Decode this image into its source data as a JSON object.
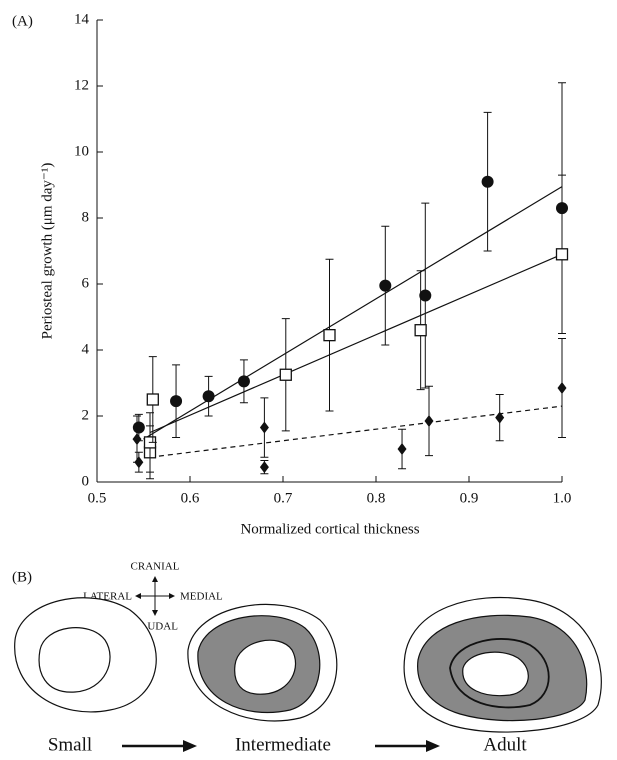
{
  "chart_data": {
    "type": "scatter",
    "panel_label": "(A)",
    "x_label": "Normalized cortical thickness",
    "y_label": "Periosteal growth (μm day⁻¹)",
    "xlim": [
      0.5,
      1.0
    ],
    "ylim": [
      0,
      14
    ],
    "xticks": [
      0.5,
      0.6,
      0.7,
      0.8,
      0.9,
      {
        "value": 1,
        "label": "1.0"
      }
    ],
    "yticks": [
      0,
      2,
      4,
      6,
      8,
      10,
      12,
      14
    ],
    "series": [
      {
        "marker": "circle",
        "color": "#111111",
        "x": [
          0.545,
          0.585,
          0.62,
          0.658,
          0.81,
          0.853,
          0.92,
          1.0
        ],
        "values": [
          1.65,
          2.45,
          2.6,
          3.05,
          5.95,
          5.65,
          9.1,
          8.3
        ],
        "errors": [
          0.4,
          1.1,
          0.6,
          0.65,
          1.8,
          2.8,
          2.1,
          3.8
        ]
      },
      {
        "marker": "square",
        "color": "#111111",
        "x": [
          0.557,
          0.557,
          0.56,
          0.703,
          0.75,
          0.848,
          1.0
        ],
        "values": [
          0.9,
          1.2,
          2.5,
          3.25,
          4.45,
          4.6,
          6.9
        ],
        "errors": [
          0.8,
          0.9,
          1.3,
          1.7,
          2.3,
          1.8,
          2.4
        ]
      },
      {
        "marker": "diamond",
        "color": "#111111",
        "x": [
          0.543,
          0.545,
          0.68,
          0.68,
          0.828,
          0.857,
          0.933,
          1.0
        ],
        "values": [
          1.3,
          0.6,
          1.65,
          0.45,
          1.0,
          1.85,
          1.95,
          2.85
        ],
        "errors": [
          0.7,
          0.3,
          0.9,
          0.2,
          0.6,
          1.05,
          0.7,
          1.5
        ]
      }
    ],
    "fits": [
      {
        "dash": false,
        "x": [
          0.55,
          1.0
        ],
        "values": [
          1.3,
          8.95
        ]
      },
      {
        "dash": false,
        "x": [
          0.557,
          1.0
        ],
        "values": [
          1.5,
          6.9
        ]
      },
      {
        "dash": true,
        "x": [
          0.557,
          1.0
        ],
        "values": [
          0.75,
          2.3
        ]
      }
    ]
  },
  "diagram": {
    "panel_label": "(B)",
    "cranial": "CRANIAL",
    "lateral": "LATERAL",
    "medial": "MEDIAL",
    "caudal": "CAUDAL",
    "stages": [
      "Small",
      "Intermediate",
      "Adult"
    ]
  }
}
